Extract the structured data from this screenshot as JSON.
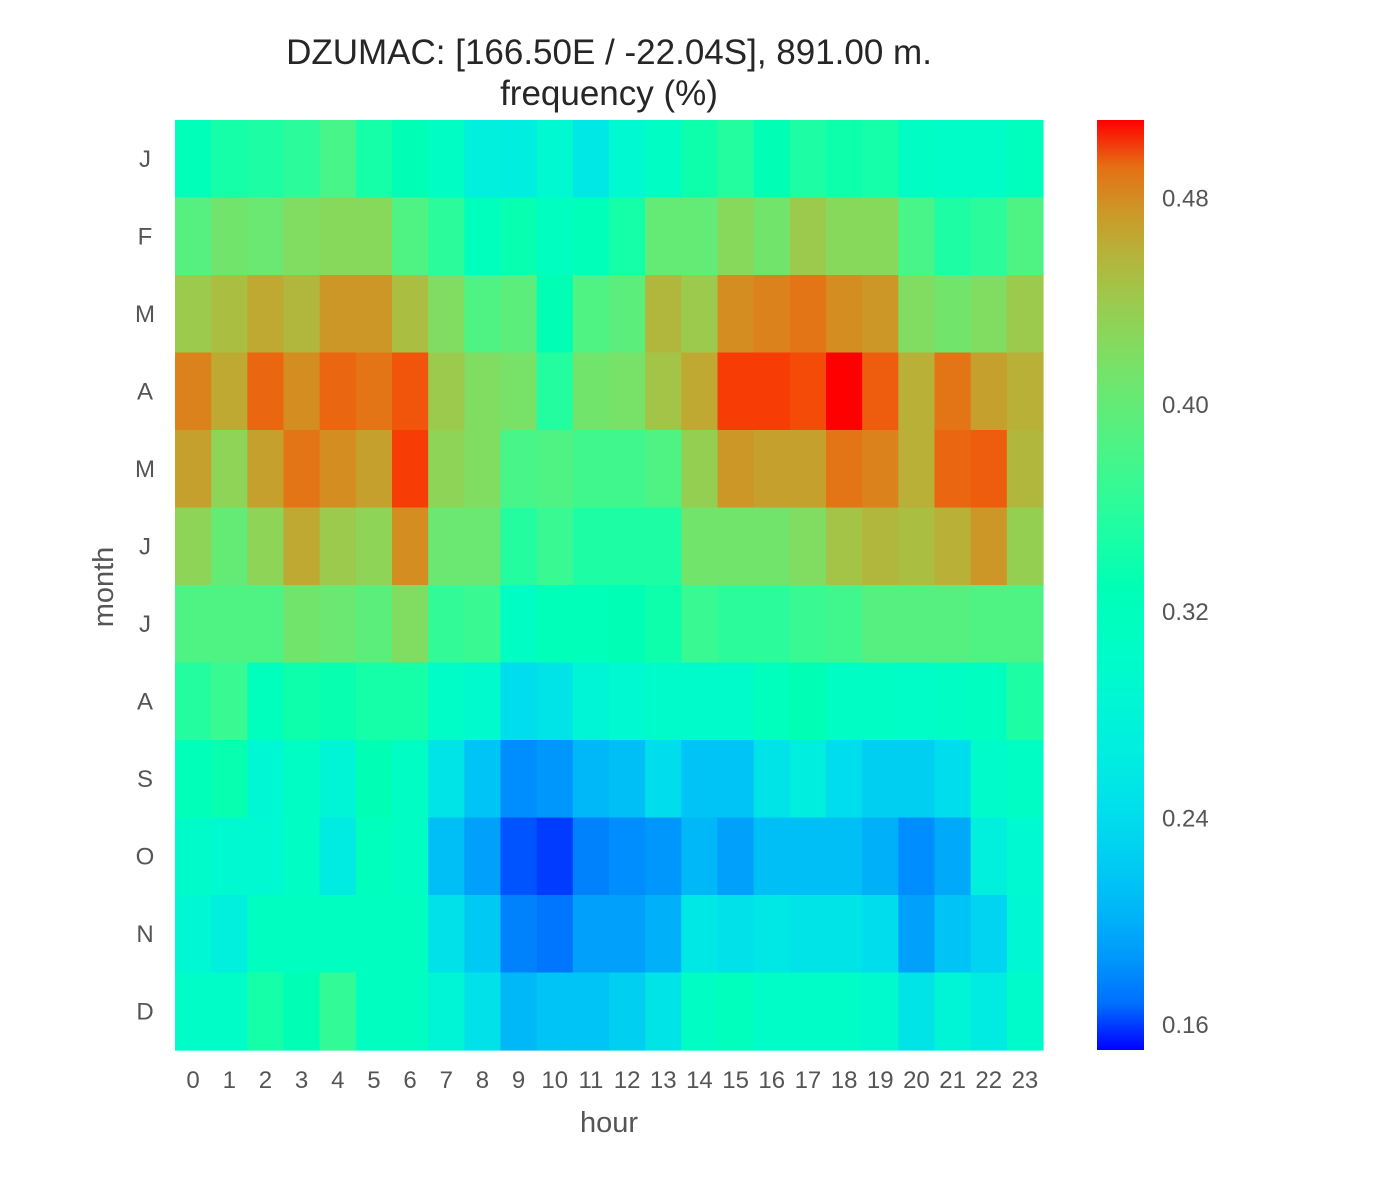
{
  "chart_data": {
    "type": "heatmap",
    "title": "DZUMAC: [166.50E / -22.04S], 891.00 m.",
    "subtitle": "frequency (%)",
    "xlabel": "hour",
    "ylabel": "month",
    "x": [
      "0",
      "1",
      "2",
      "3",
      "4",
      "5",
      "6",
      "7",
      "8",
      "9",
      "10",
      "11",
      "12",
      "13",
      "14",
      "15",
      "16",
      "17",
      "18",
      "19",
      "20",
      "21",
      "22",
      "23"
    ],
    "y": [
      "J",
      "F",
      "M",
      "A",
      "M",
      "J",
      "J",
      "A",
      "S",
      "O",
      "N",
      "D"
    ],
    "colorscale": "rainbow",
    "vmin": 0.15,
    "vmax": 0.51,
    "colorbar_ticks": [
      "0.16",
      "0.24",
      "0.32",
      "0.40",
      "0.48"
    ],
    "colorbar_tick_values": [
      0.16,
      0.24,
      0.32,
      0.4,
      0.48
    ],
    "grid": false,
    "values": [
      [
        0.325,
        0.345,
        0.35,
        0.36,
        0.38,
        0.345,
        0.33,
        0.31,
        0.27,
        0.265,
        0.29,
        0.255,
        0.29,
        0.31,
        0.34,
        0.355,
        0.33,
        0.35,
        0.34,
        0.345,
        0.31,
        0.305,
        0.305,
        0.32
      ],
      [
        0.39,
        0.41,
        0.405,
        0.42,
        0.425,
        0.425,
        0.385,
        0.36,
        0.32,
        0.335,
        0.315,
        0.325,
        0.345,
        0.4,
        0.4,
        0.425,
        0.41,
        0.44,
        0.425,
        0.425,
        0.38,
        0.35,
        0.36,
        0.385
      ],
      [
        0.44,
        0.45,
        0.465,
        0.455,
        0.475,
        0.475,
        0.45,
        0.42,
        0.385,
        0.395,
        0.33,
        0.385,
        0.395,
        0.455,
        0.44,
        0.48,
        0.485,
        0.49,
        0.48,
        0.475,
        0.42,
        0.41,
        0.42,
        0.44
      ],
      [
        0.485,
        0.465,
        0.495,
        0.48,
        0.495,
        0.49,
        0.5,
        0.44,
        0.42,
        0.415,
        0.355,
        0.41,
        0.415,
        0.445,
        0.465,
        0.505,
        0.505,
        0.502,
        0.51,
        0.498,
        0.46,
        0.49,
        0.47,
        0.46
      ],
      [
        0.47,
        0.43,
        0.47,
        0.49,
        0.48,
        0.47,
        0.505,
        0.43,
        0.42,
        0.38,
        0.385,
        0.375,
        0.375,
        0.385,
        0.435,
        0.475,
        0.47,
        0.47,
        0.49,
        0.485,
        0.46,
        0.495,
        0.498,
        0.455
      ],
      [
        0.43,
        0.4,
        0.43,
        0.465,
        0.44,
        0.43,
        0.48,
        0.405,
        0.405,
        0.355,
        0.37,
        0.35,
        0.35,
        0.35,
        0.41,
        0.41,
        0.41,
        0.42,
        0.445,
        0.455,
        0.45,
        0.46,
        0.475,
        0.435
      ],
      [
        0.385,
        0.385,
        0.385,
        0.41,
        0.405,
        0.395,
        0.42,
        0.365,
        0.37,
        0.31,
        0.325,
        0.325,
        0.33,
        0.34,
        0.37,
        0.36,
        0.36,
        0.37,
        0.375,
        0.39,
        0.39,
        0.39,
        0.385,
        0.385
      ],
      [
        0.355,
        0.37,
        0.32,
        0.34,
        0.335,
        0.345,
        0.345,
        0.305,
        0.295,
        0.24,
        0.25,
        0.28,
        0.29,
        0.3,
        0.3,
        0.3,
        0.32,
        0.33,
        0.31,
        0.31,
        0.305,
        0.31,
        0.315,
        0.35
      ],
      [
        0.325,
        0.335,
        0.285,
        0.31,
        0.28,
        0.33,
        0.31,
        0.25,
        0.215,
        0.18,
        0.185,
        0.205,
        0.21,
        0.24,
        0.215,
        0.215,
        0.25,
        0.265,
        0.24,
        0.225,
        0.225,
        0.24,
        0.3,
        0.31
      ],
      [
        0.3,
        0.29,
        0.29,
        0.31,
        0.26,
        0.32,
        0.31,
        0.21,
        0.19,
        0.16,
        0.155,
        0.175,
        0.18,
        0.185,
        0.205,
        0.19,
        0.21,
        0.21,
        0.21,
        0.2,
        0.18,
        0.195,
        0.27,
        0.29
      ],
      [
        0.285,
        0.27,
        0.315,
        0.315,
        0.315,
        0.315,
        0.315,
        0.245,
        0.22,
        0.175,
        0.17,
        0.19,
        0.19,
        0.2,
        0.255,
        0.245,
        0.255,
        0.25,
        0.25,
        0.24,
        0.19,
        0.215,
        0.23,
        0.285
      ],
      [
        0.305,
        0.305,
        0.345,
        0.33,
        0.365,
        0.315,
        0.315,
        0.28,
        0.245,
        0.205,
        0.215,
        0.215,
        0.225,
        0.25,
        0.31,
        0.32,
        0.305,
        0.305,
        0.305,
        0.295,
        0.25,
        0.28,
        0.26,
        0.3
      ]
    ]
  }
}
